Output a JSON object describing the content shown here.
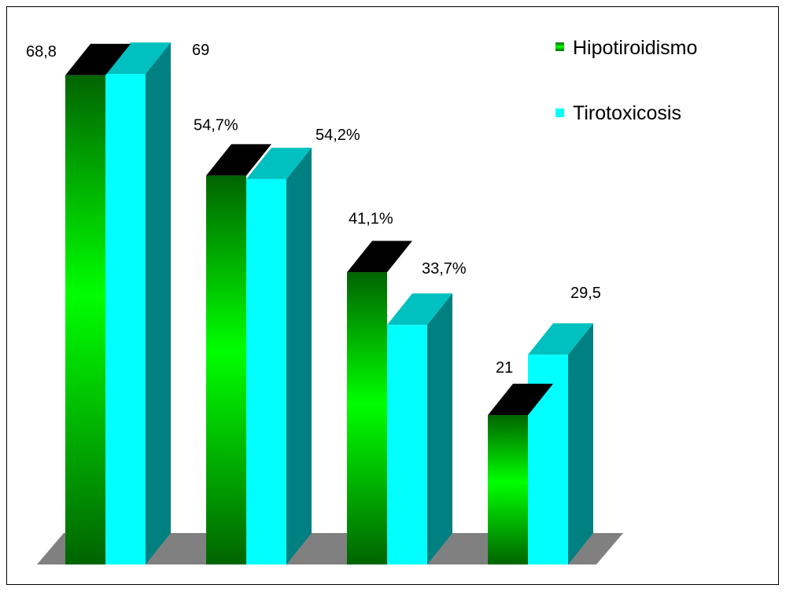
{
  "chart_data": {
    "type": "bar",
    "title": "",
    "xlabel": "",
    "ylabel": "",
    "ylim": [
      0,
      69
    ],
    "grid": false,
    "legend_position": "top-right",
    "categories": [
      "",
      "",
      "",
      ""
    ],
    "series": [
      {
        "name": "Hipotiroidismo",
        "values": [
          68.8,
          54.7,
          41.1,
          21
        ],
        "labels": [
          "68,8",
          "54,7%",
          "41,1%",
          "21"
        ],
        "colors": {
          "front_dark": "#006400",
          "front_light": "#00ff00",
          "top": "#000000",
          "side": "#006400"
        }
      },
      {
        "name": "Tirotoxicosis",
        "values": [
          69,
          54.2,
          33.7,
          29.5
        ],
        "labels": [
          "69",
          "54,2%",
          "33,7%",
          "29,5"
        ],
        "colors": {
          "front": "#00ffff",
          "top": "#00c0c0",
          "side": "#008080"
        }
      }
    ],
    "floor_color": "#808080"
  }
}
